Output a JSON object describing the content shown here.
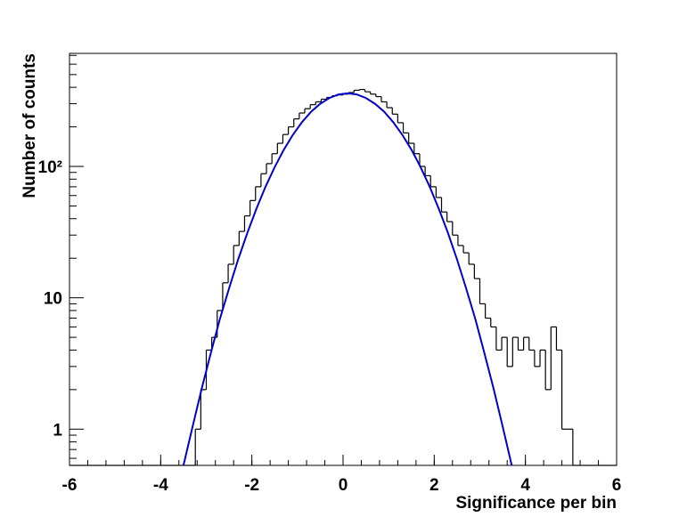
{
  "chart_data": {
    "type": "histogram",
    "x_label": "Significance per bin",
    "y_label": "Number of counts",
    "bins": [
      -6,
      -5.88,
      -5.76,
      -5.64,
      -5.52,
      -5.4,
      -5.28,
      -5.16,
      -5.04,
      -4.92,
      -4.8,
      -4.68,
      -4.56,
      -4.44,
      -4.32,
      -4.2,
      -4.08,
      -3.96,
      -3.84,
      -3.72,
      -3.6,
      -3.48,
      -3.36,
      -3.24,
      -3.12,
      -3,
      -2.88,
      -2.76,
      -2.64,
      -2.52,
      -2.4,
      -2.28,
      -2.16,
      -2.04,
      -1.92,
      -1.8,
      -1.68,
      -1.56,
      -1.44,
      -1.32,
      -1.2,
      -1.08,
      -0.96,
      -0.84,
      -0.72,
      -0.6,
      -0.48,
      -0.36,
      -0.24,
      -0.12,
      0,
      0.12,
      0.24,
      0.36,
      0.48,
      0.6,
      0.72,
      0.84,
      0.96,
      1.08,
      1.2,
      1.32,
      1.44,
      1.56,
      1.68,
      1.8,
      1.92,
      2.04,
      2.16,
      2.28,
      2.4,
      2.52,
      2.64,
      2.76,
      2.88,
      3,
      3.12,
      3.24,
      3.36,
      3.48,
      3.6,
      3.72,
      3.84,
      3.96,
      4.08,
      4.2,
      4.32,
      4.44,
      4.56,
      4.68,
      4.8,
      4.92,
      5.04,
      5.16,
      5.28,
      5.4,
      5.52,
      5.64,
      5.76,
      5.88,
      6
    ],
    "values": [
      0,
      0,
      0,
      0,
      0,
      0,
      0,
      0,
      0,
      0,
      0,
      0,
      0,
      0,
      0,
      0,
      0,
      0,
      0,
      0,
      0,
      0,
      0,
      1,
      2,
      4,
      5,
      8,
      13,
      18,
      25,
      32,
      42,
      55,
      70,
      88,
      105,
      125,
      150,
      175,
      200,
      230,
      255,
      275,
      295,
      310,
      325,
      335,
      345,
      350,
      355,
      365,
      380,
      385,
      370,
      355,
      340,
      310,
      280,
      250,
      215,
      180,
      150,
      125,
      100,
      85,
      70,
      58,
      45,
      38,
      30,
      25,
      22,
      18,
      14,
      9,
      7,
      6,
      4,
      5,
      3,
      5,
      4,
      5,
      4,
      3,
      4,
      2,
      6,
      4,
      1,
      1,
      0,
      0,
      0,
      0,
      0,
      0,
      0,
      0
    ],
    "color": "#000000",
    "fit": {
      "color": "#0000cc",
      "x": [
        -3.5,
        -3.3,
        -3.1,
        -2.9,
        -2.7,
        -2.5,
        -2.3,
        -2.1,
        -1.9,
        -1.7,
        -1.5,
        -1.3,
        -1.1,
        -0.9,
        -0.7,
        -0.5,
        -0.3,
        -0.1,
        0.1,
        0.3,
        0.5,
        0.7,
        0.9,
        1.1,
        1.3,
        1.5,
        1.7,
        1.9,
        2.1,
        2.3,
        2.5,
        2.7,
        2.9,
        3.1,
        3.3,
        3.5,
        3.7
      ],
      "values": [
        0.52,
        1.05,
        2.04,
        3.8,
        6.9,
        11.8,
        19.6,
        31.2,
        47.7,
        70.1,
        98.8,
        133.8,
        174,
        217,
        261,
        300,
        332,
        353,
        360,
        353,
        332,
        300,
        261,
        217,
        174,
        133.8,
        98.8,
        70.1,
        47.7,
        31.2,
        19.6,
        11.8,
        6.9,
        3.8,
        2.04,
        1.05,
        0.52
      ]
    },
    "xlim": [
      -6,
      6
    ],
    "xticks": [
      -6,
      -4,
      -2,
      0,
      2,
      4,
      6
    ],
    "ylim": [
      0.53,
      725
    ],
    "log_y": true,
    "yticks": [
      1,
      10,
      {
        "value": 100,
        "label": "10²"
      }
    ]
  }
}
